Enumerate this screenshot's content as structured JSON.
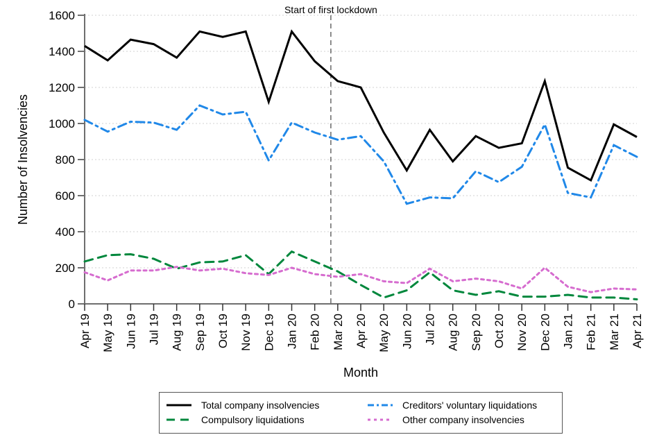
{
  "chart_data": {
    "type": "line",
    "title": "",
    "xlabel": "Month",
    "ylabel": "Number of Insolvencies",
    "ylim": [
      0,
      1600
    ],
    "yticks": [
      0,
      200,
      400,
      600,
      800,
      1000,
      1200,
      1400,
      1600
    ],
    "grid": "horizontal dotted",
    "legend_position": "bottom",
    "x": [
      "Apr 19",
      "May 19",
      "Jun 19",
      "Jul 19",
      "Aug 19",
      "Sep 19",
      "Oct 19",
      "Nov 19",
      "Dec 19",
      "Jan 20",
      "Feb 20",
      "Mar 20",
      "Apr 20",
      "May 20",
      "Jun 20",
      "Jul 20",
      "Aug 20",
      "Sep 20",
      "Oct 20",
      "Nov 20",
      "Dec 20",
      "Jan 21",
      "Feb 21",
      "Mar 21",
      "Apr 21"
    ],
    "series": [
      {
        "name": "Total company insolvencies",
        "color": "#000000",
        "style": "solid",
        "values": [
          1430,
          1350,
          1465,
          1440,
          1365,
          1510,
          1480,
          1510,
          1120,
          1510,
          1345,
          1235,
          1200,
          950,
          740,
          965,
          790,
          930,
          865,
          890,
          1235,
          755,
          685,
          995,
          925
        ]
      },
      {
        "name": "Creditors' voluntary liquidations",
        "color": "#2088e8",
        "style": "dashdot",
        "values": [
          1020,
          955,
          1010,
          1005,
          965,
          1100,
          1050,
          1065,
          795,
          1005,
          950,
          910,
          930,
          790,
          555,
          590,
          585,
          735,
          675,
          760,
          995,
          615,
          590,
          880,
          815
        ]
      },
      {
        "name": "Compulsory liquidations",
        "color": "#00873c",
        "style": "dashed",
        "values": [
          235,
          270,
          275,
          250,
          195,
          230,
          235,
          270,
          165,
          290,
          235,
          180,
          105,
          35,
          75,
          175,
          75,
          50,
          70,
          40,
          40,
          50,
          35,
          35,
          25
        ]
      },
      {
        "name": "Other company insolvencies",
        "color": "#d66ccf",
        "style": "dotted",
        "values": [
          175,
          130,
          185,
          185,
          205,
          185,
          195,
          170,
          160,
          200,
          165,
          150,
          165,
          125,
          115,
          195,
          125,
          140,
          125,
          85,
          200,
          95,
          65,
          85,
          80
        ]
      }
    ],
    "annotations": [
      {
        "text": "Start of first lockdown",
        "x_position_between": [
          "Feb 20",
          "Mar 20"
        ],
        "x_fraction": 0.7,
        "line": "vertical dashed grey"
      }
    ]
  },
  "legend": {
    "items": [
      {
        "label": "Total company insolvencies"
      },
      {
        "label": "Creditors' voluntary liquidations"
      },
      {
        "label": "Compulsory liquidations"
      },
      {
        "label": "Other company insolvencies"
      }
    ]
  }
}
